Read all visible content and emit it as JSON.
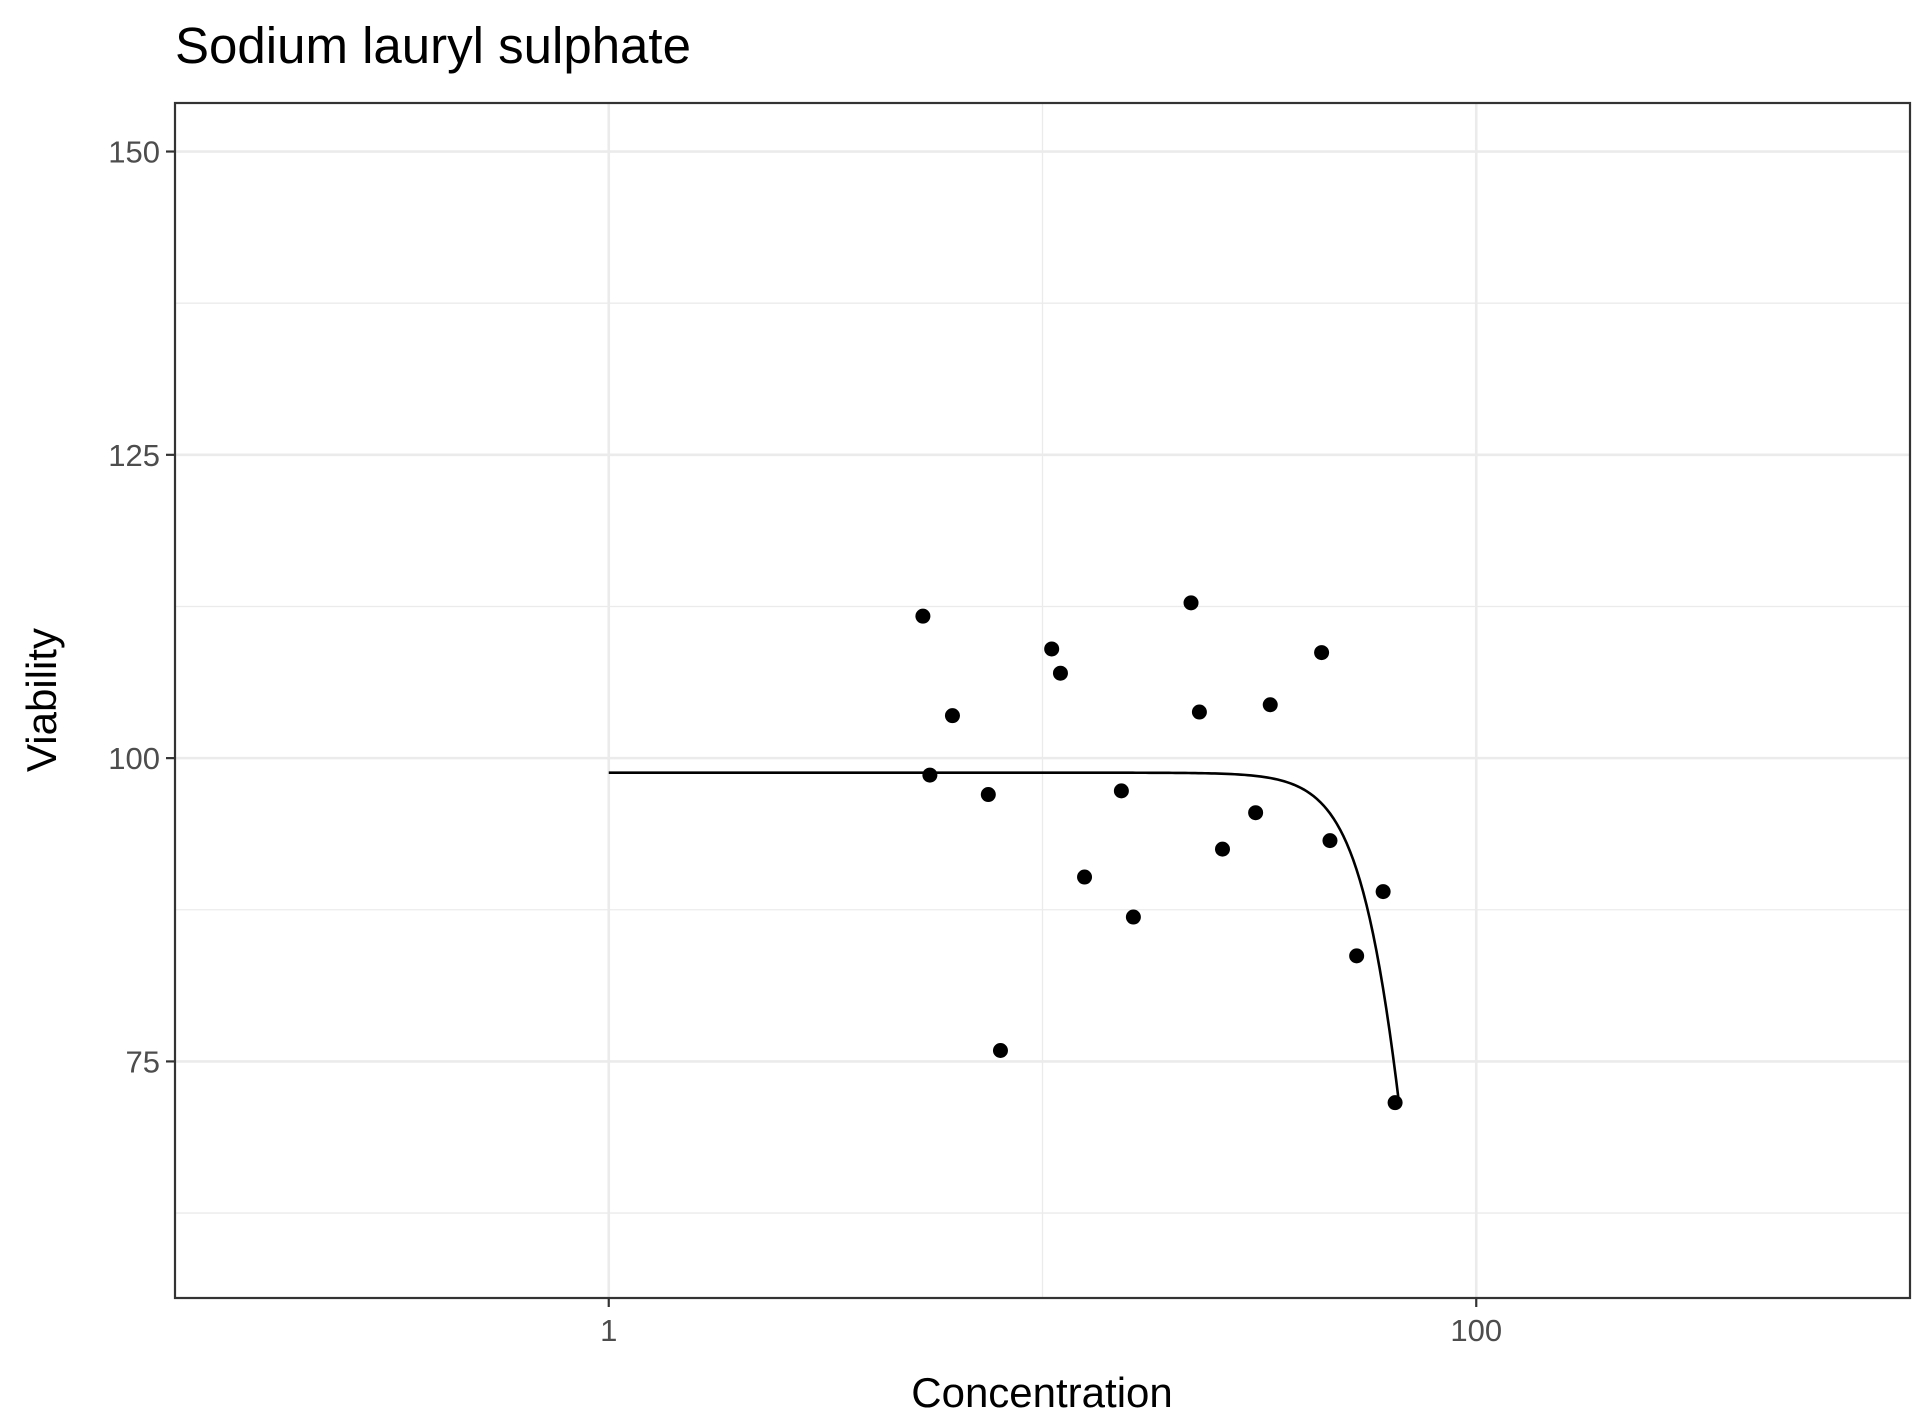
{
  "chart_data": {
    "type": "scatter",
    "title": "Sodium lauryl sulphate",
    "xlabel": "Concentration",
    "ylabel": "Viability",
    "x_scale": "log10",
    "xlim": [
      0.1,
      1000
    ],
    "ylim": [
      55.5,
      154
    ],
    "x_ticks": [
      {
        "value": 1,
        "label": "1"
      },
      {
        "value": 100,
        "label": "100"
      }
    ],
    "x_minor_gridlines": [
      0.1,
      10,
      1000
    ],
    "y_ticks": [
      {
        "value": 75,
        "label": "75"
      },
      {
        "value": 100,
        "label": "100"
      },
      {
        "value": 125,
        "label": "125"
      },
      {
        "value": 150,
        "label": "150"
      }
    ],
    "y_minor_gridlines": [
      62.5,
      87.5,
      112.5,
      137.5
    ],
    "grid": true,
    "points": [
      {
        "x": 5.3,
        "y": 111.7
      },
      {
        "x": 5.5,
        "y": 98.6
      },
      {
        "x": 6.2,
        "y": 103.5
      },
      {
        "x": 7.5,
        "y": 97.0
      },
      {
        "x": 8.0,
        "y": 75.9
      },
      {
        "x": 10.5,
        "y": 109.0
      },
      {
        "x": 11.0,
        "y": 107.0
      },
      {
        "x": 12.5,
        "y": 90.2
      },
      {
        "x": 15.2,
        "y": 97.3
      },
      {
        "x": 16.2,
        "y": 86.9
      },
      {
        "x": 22.0,
        "y": 112.8
      },
      {
        "x": 23.0,
        "y": 103.8
      },
      {
        "x": 26.0,
        "y": 92.5
      },
      {
        "x": 31.0,
        "y": 95.5
      },
      {
        "x": 33.5,
        "y": 104.4
      },
      {
        "x": 44.0,
        "y": 108.7
      },
      {
        "x": 46.0,
        "y": 93.2
      },
      {
        "x": 53.0,
        "y": 83.7
      },
      {
        "x": 61.0,
        "y": 89.0
      },
      {
        "x": 65.0,
        "y": 71.6
      }
    ],
    "fit_curve": {
      "top": 98.8,
      "ec50": 77,
      "hill": 6.5,
      "x_range": [
        1,
        66.5
      ]
    }
  }
}
